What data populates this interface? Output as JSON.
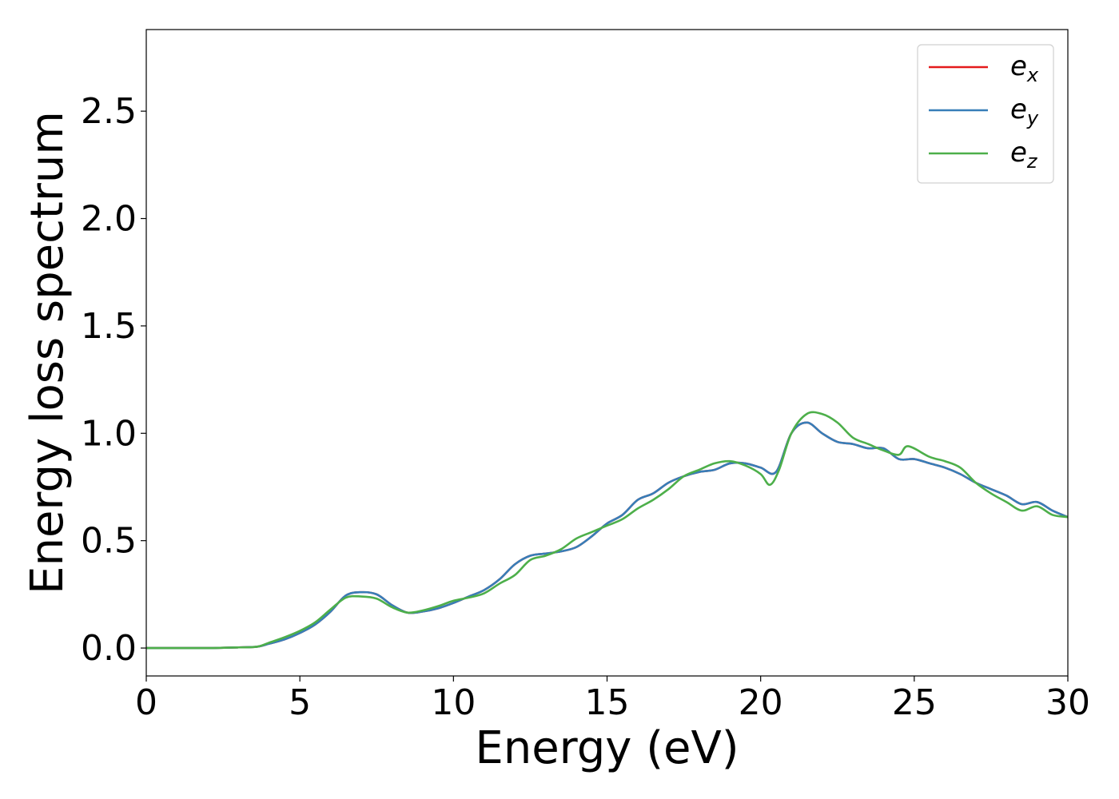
{
  "chart_data": {
    "type": "line",
    "title": "",
    "xlabel": "Energy (eV)",
    "ylabel": "Energy loss spectrum",
    "xlim": [
      0,
      30
    ],
    "ylim": [
      -0.13,
      2.88
    ],
    "xticks": [
      0,
      5,
      10,
      15,
      20,
      25,
      30
    ],
    "yticks": [
      0.0,
      0.5,
      1.0,
      1.5,
      2.0,
      2.5
    ],
    "xtick_labels": [
      "0",
      "5",
      "10",
      "15",
      "20",
      "25",
      "30"
    ],
    "ytick_labels": [
      "0.0",
      "0.5",
      "1.0",
      "1.5",
      "2.0",
      "2.5"
    ],
    "grid": false,
    "legend_position": "top-right",
    "series": [
      {
        "name": "e_x",
        "color": "#e41a1c",
        "x": [
          0,
          1,
          2,
          3,
          3.6,
          4,
          4.5,
          5,
          5.5,
          6,
          6.5,
          7,
          7.5,
          8,
          8.5,
          9,
          9.5,
          10,
          10.5,
          11,
          11.5,
          12,
          12.5,
          13,
          13.5,
          14,
          14.5,
          15,
          15.5,
          16,
          16.5,
          17,
          17.5,
          18,
          18.5,
          19,
          19.5,
          20,
          20.5,
          21,
          21.5,
          22,
          22.5,
          23,
          23.5,
          24,
          24.5,
          25,
          25.5,
          26,
          26.5,
          27,
          27.5,
          28,
          28.5,
          29,
          29.5,
          30
        ],
        "y": [
          0.0,
          0.0,
          0.0,
          0.003,
          0.006,
          0.02,
          0.04,
          0.07,
          0.11,
          0.17,
          0.245,
          0.26,
          0.25,
          0.2,
          0.165,
          0.17,
          0.185,
          0.21,
          0.24,
          0.27,
          0.32,
          0.39,
          0.43,
          0.44,
          0.45,
          0.47,
          0.52,
          0.58,
          0.62,
          0.69,
          0.72,
          0.77,
          0.8,
          0.82,
          0.83,
          0.86,
          0.86,
          0.84,
          0.82,
          1.0,
          1.05,
          1.0,
          0.96,
          0.95,
          0.93,
          0.93,
          0.88,
          0.88,
          0.86,
          0.84,
          0.81,
          0.77,
          0.74,
          0.71,
          0.67,
          0.68,
          0.64,
          0.61
        ]
      },
      {
        "name": "e_y",
        "color": "#377eb8",
        "x": [
          0,
          1,
          2,
          3,
          3.6,
          4,
          4.5,
          5,
          5.5,
          6,
          6.5,
          7,
          7.5,
          8,
          8.5,
          9,
          9.5,
          10,
          10.5,
          11,
          11.5,
          12,
          12.5,
          13,
          13.5,
          14,
          14.5,
          15,
          15.5,
          16,
          16.5,
          17,
          17.5,
          18,
          18.5,
          19,
          19.5,
          20,
          20.5,
          21,
          21.5,
          22,
          22.5,
          23,
          23.5,
          24,
          24.5,
          25,
          25.5,
          26,
          26.5,
          27,
          27.5,
          28,
          28.5,
          29,
          29.5,
          30
        ],
        "y": [
          0.0,
          0.0,
          0.0,
          0.003,
          0.006,
          0.02,
          0.04,
          0.07,
          0.11,
          0.17,
          0.245,
          0.26,
          0.25,
          0.2,
          0.165,
          0.17,
          0.185,
          0.21,
          0.24,
          0.27,
          0.32,
          0.39,
          0.43,
          0.44,
          0.45,
          0.47,
          0.52,
          0.58,
          0.62,
          0.69,
          0.72,
          0.77,
          0.8,
          0.82,
          0.83,
          0.86,
          0.86,
          0.84,
          0.82,
          1.0,
          1.05,
          1.0,
          0.96,
          0.95,
          0.93,
          0.93,
          0.88,
          0.88,
          0.86,
          0.84,
          0.81,
          0.77,
          0.74,
          0.71,
          0.67,
          0.68,
          0.64,
          0.61
        ]
      },
      {
        "name": "e_z",
        "color": "#4daf4a",
        "x": [
          0,
          1,
          2,
          3,
          3.6,
          4,
          4.5,
          5,
          5.5,
          6,
          6.5,
          7,
          7.5,
          8,
          8.5,
          9,
          9.5,
          10,
          10.5,
          11,
          11.5,
          12,
          12.5,
          13,
          13.5,
          14,
          14.5,
          15,
          15.5,
          16,
          16.5,
          17,
          17.5,
          18,
          18.5,
          19,
          19.5,
          20,
          20.3,
          20.6,
          21,
          21.5,
          22,
          22.5,
          23,
          23.5,
          24,
          24.5,
          24.8,
          25.5,
          26,
          26.5,
          27,
          27.5,
          28,
          28.5,
          29,
          29.5,
          30
        ],
        "y": [
          0.0,
          0.0,
          0.0,
          0.003,
          0.006,
          0.025,
          0.05,
          0.08,
          0.12,
          0.18,
          0.235,
          0.24,
          0.23,
          0.19,
          0.165,
          0.175,
          0.195,
          0.22,
          0.235,
          0.255,
          0.3,
          0.34,
          0.41,
          0.43,
          0.46,
          0.51,
          0.54,
          0.57,
          0.6,
          0.65,
          0.69,
          0.74,
          0.8,
          0.83,
          0.86,
          0.87,
          0.85,
          0.81,
          0.76,
          0.83,
          1.0,
          1.09,
          1.09,
          1.05,
          0.98,
          0.95,
          0.92,
          0.9,
          0.94,
          0.89,
          0.87,
          0.84,
          0.77,
          0.72,
          0.68,
          0.64,
          0.66,
          0.62,
          0.61
        ]
      }
    ]
  }
}
